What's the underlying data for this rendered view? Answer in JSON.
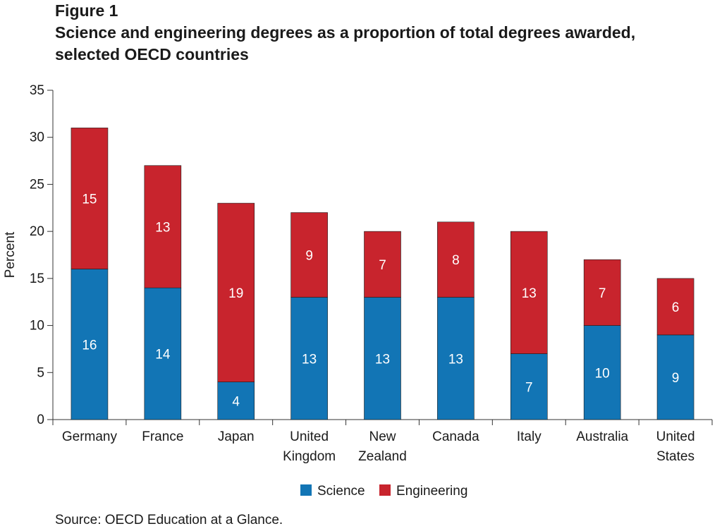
{
  "figure_label": "Figure 1",
  "title_line1": "Science and engineering degrees as a proportion of total degrees awarded,",
  "title_line2": "selected OECD countries",
  "source": "Source: OECD Education at a Glance.",
  "chart_data": {
    "type": "bar",
    "stacked": true,
    "categories": [
      [
        "Germany"
      ],
      [
        "France"
      ],
      [
        "Japan"
      ],
      [
        "United",
        "Kingdom"
      ],
      [
        "New",
        "Zealand"
      ],
      [
        "Canada"
      ],
      [
        "Italy"
      ],
      [
        "Australia"
      ],
      [
        "United",
        "States"
      ]
    ],
    "series": [
      {
        "name": "Science",
        "color": "#1275b5",
        "values": [
          16,
          14,
          4,
          13,
          13,
          13,
          7,
          10,
          9
        ]
      },
      {
        "name": "Engineering",
        "color": "#c8242d",
        "values": [
          15,
          13,
          19,
          9,
          7,
          8,
          13,
          7,
          6
        ]
      }
    ],
    "ylabel": "Percent",
    "ylim": [
      0,
      35
    ],
    "yticks": [
      0,
      5,
      10,
      15,
      20,
      25,
      30,
      35
    ],
    "grid": false,
    "legend_position": "bottom-center"
  }
}
